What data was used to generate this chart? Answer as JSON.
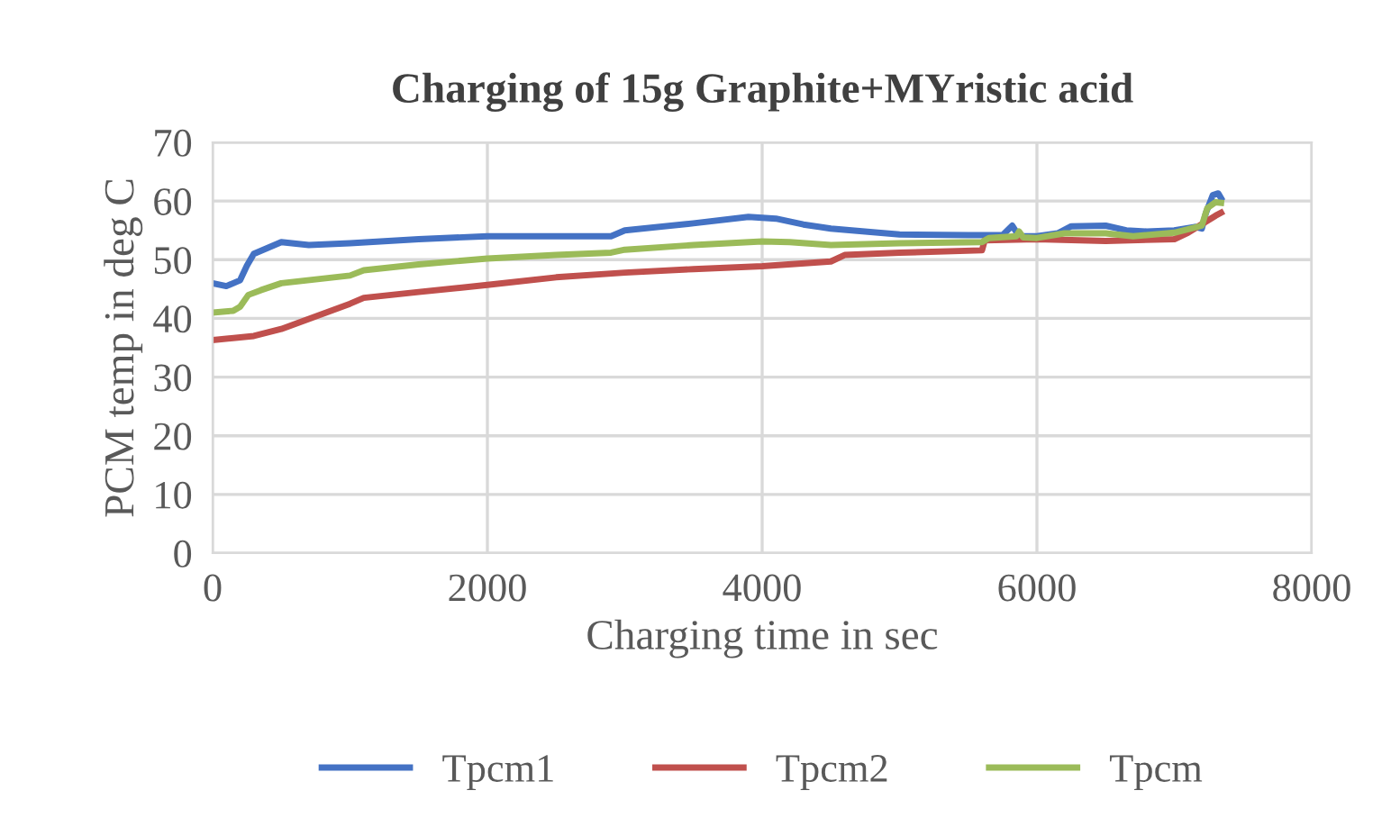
{
  "chart_data": {
    "type": "line",
    "title": "Charging of 15g Graphite+MYristic acid",
    "xlabel": "Charging time in sec",
    "ylabel": "PCM temp in deg C",
    "xlim": [
      0,
      8000
    ],
    "xticks": [
      0,
      2000,
      4000,
      6000,
      8000
    ],
    "ylim": [
      0,
      70
    ],
    "yticks": [
      0,
      10,
      20,
      30,
      40,
      50,
      60,
      70
    ],
    "grid": true,
    "legend": "bottom",
    "marker": "none",
    "line_style": "solid",
    "series": [
      {
        "name": "Tpcm1",
        "color": "#4472c4",
        "x": [
          0,
          100,
          200,
          250,
          300,
          400,
          450,
          500,
          700,
          1000,
          1500,
          2000,
          2500,
          2900,
          3000,
          3500,
          3900,
          4100,
          4300,
          4500,
          5000,
          5500,
          5750,
          5820,
          5870,
          6000,
          6150,
          6250,
          6500,
          6650,
          6800,
          7000,
          7150,
          7200,
          7230,
          7280,
          7320,
          7340
        ],
        "values": [
          46,
          45.5,
          46.5,
          49,
          51,
          52,
          52.5,
          53,
          52.5,
          52.8,
          53.5,
          54,
          54,
          54,
          55,
          56.2,
          57.3,
          57,
          56,
          55.3,
          54.3,
          54.2,
          54.2,
          55.8,
          54,
          54,
          54.5,
          55.7,
          55.8,
          55,
          54.8,
          55,
          55.6,
          55.3,
          58,
          61,
          61.3,
          60.5
        ]
      },
      {
        "name": "Tpcm2",
        "color": "#c0504d",
        "x": [
          0,
          300,
          500,
          1000,
          1100,
          1500,
          2000,
          2500,
          3000,
          3500,
          4000,
          4500,
          4600,
          5000,
          5600,
          5620,
          6000,
          6500,
          7000,
          7100,
          7300,
          7340
        ],
        "values": [
          36.3,
          37,
          38.2,
          42.5,
          43.5,
          44.5,
          45.7,
          47,
          47.8,
          48.4,
          48.9,
          49.7,
          50.8,
          51.2,
          51.6,
          53.3,
          53.5,
          53.2,
          53.5,
          54.6,
          57.5,
          58
        ]
      },
      {
        "name": "Tpcm",
        "color": "#9bbb59",
        "x": [
          0,
          150,
          200,
          260,
          350,
          500,
          1000,
          1100,
          1500,
          2000,
          2500,
          2900,
          3000,
          3500,
          4000,
          4200,
          4500,
          5000,
          5600,
          5650,
          5850,
          5870,
          5900,
          6000,
          6200,
          6500,
          6700,
          7000,
          7200,
          7240,
          7300,
          7340
        ],
        "values": [
          41,
          41.3,
          42,
          44,
          44.8,
          46,
          47.3,
          48.2,
          49.2,
          50.2,
          50.8,
          51.2,
          51.7,
          52.5,
          53.1,
          53,
          52.5,
          52.8,
          53,
          53.7,
          54,
          54.8,
          53.8,
          53.7,
          54.5,
          54.5,
          54,
          54.6,
          55.8,
          58.8,
          59.8,
          59.7
        ]
      }
    ]
  }
}
